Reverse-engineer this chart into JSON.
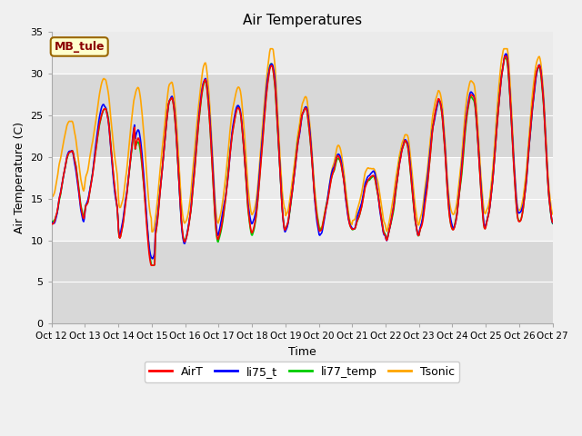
{
  "title": "Air Temperatures",
  "xlabel": "Time",
  "ylabel": "Air Temperature (C)",
  "ylim": [
    0,
    35
  ],
  "xtick_labels": [
    "Oct 12",
    "Oct 13",
    "Oct 14",
    "Oct 15",
    "Oct 16",
    "Oct 17",
    "Oct 18",
    "Oct 19",
    "Oct 20",
    "Oct 21",
    "Oct 22",
    "Oct 23",
    "Oct 24",
    "Oct 25",
    "Oct 26",
    "Oct 27"
  ],
  "ytick_values": [
    0,
    5,
    10,
    15,
    20,
    25,
    30,
    35
  ],
  "annotation_text": "MB_tule",
  "annotation_bg": "#ffffcc",
  "annotation_fg": "#8b0000",
  "legend_labels": [
    "AirT",
    "li75_t",
    "li77_temp",
    "Tsonic"
  ],
  "line_colors": [
    "#ff0000",
    "#0000ff",
    "#00cc00",
    "#ffa500"
  ],
  "band_color_dark": "#d4d4d4",
  "band_color_light": "#ebebeb",
  "plot_bg": "#ffffff",
  "fig_bg": "#f0f0f0",
  "n_points": 720
}
